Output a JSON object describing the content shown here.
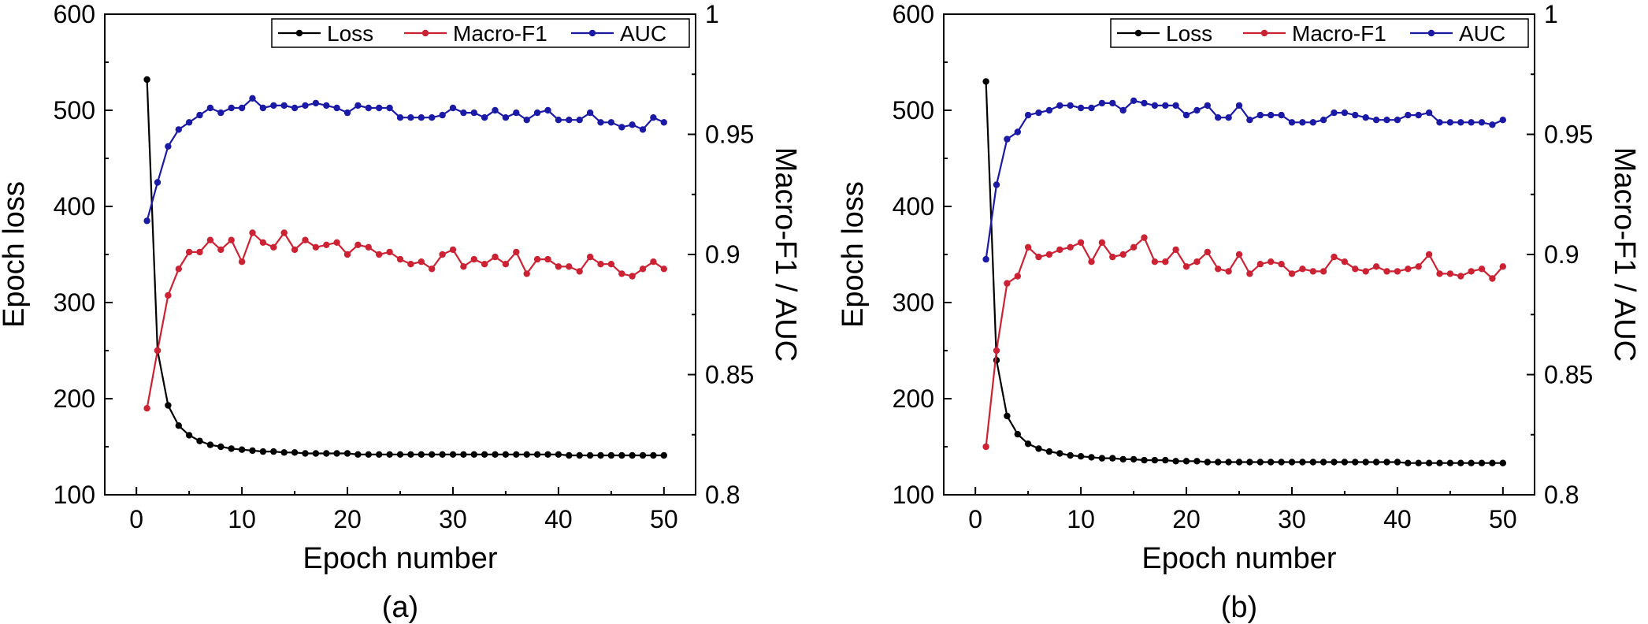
{
  "colors": {
    "loss": "#000000",
    "macro_f1": "#cc2233",
    "auc": "#1a1aa6"
  },
  "chart_data": [
    {
      "type": "line",
      "panel_label": "(a)",
      "xlabel": "Epoch number",
      "ylabel_left": "Epoch loss",
      "ylabel_right": "Macro-F1 / AUC",
      "xlim": [
        -3,
        53
      ],
      "ylim_left": [
        100,
        600
      ],
      "ylim_right": [
        0.8,
        1.0
      ],
      "x_ticks": [
        0,
        10,
        20,
        30,
        40,
        50
      ],
      "y_ticks_left": [
        100,
        200,
        300,
        400,
        500,
        600
      ],
      "y_ticks_right": [
        0.8,
        0.85,
        0.9,
        0.95,
        1.0
      ],
      "y_tick_labels_right": [
        "0.8",
        "0.85",
        "0.9",
        "0.95",
        "1"
      ],
      "legend": {
        "position": "top-right",
        "entries": [
          "Loss",
          "Macro-F1",
          "AUC"
        ]
      },
      "series": [
        {
          "name": "Loss",
          "axis": "left",
          "color_key": "loss",
          "values": [
            532,
            250,
            193,
            172,
            162,
            156,
            152,
            150,
            148,
            147,
            146,
            145,
            145,
            144,
            144,
            143,
            143,
            143,
            143,
            143,
            142,
            142,
            142,
            142,
            142,
            142,
            142,
            142,
            142,
            142,
            142,
            142,
            142,
            142,
            142,
            142,
            142,
            142,
            142,
            142,
            141,
            141,
            141,
            141,
            141,
            141,
            141,
            141,
            141,
            141
          ]
        },
        {
          "name": "Macro-F1",
          "axis": "right",
          "color_key": "macro_f1",
          "values": [
            0.836,
            0.86,
            0.883,
            0.894,
            0.901,
            0.901,
            0.906,
            0.902,
            0.906,
            0.897,
            0.909,
            0.905,
            0.903,
            0.909,
            0.902,
            0.906,
            0.903,
            0.904,
            0.905,
            0.9,
            0.904,
            0.903,
            0.9,
            0.901,
            0.898,
            0.896,
            0.897,
            0.894,
            0.9,
            0.902,
            0.895,
            0.898,
            0.896,
            0.899,
            0.896,
            0.901,
            0.892,
            0.898,
            0.898,
            0.895,
            0.895,
            0.893,
            0.899,
            0.896,
            0.896,
            0.892,
            0.891,
            0.894,
            0.897,
            0.894
          ]
        },
        {
          "name": "AUC",
          "axis": "right",
          "color_key": "auc",
          "values": [
            0.914,
            0.93,
            0.945,
            0.952,
            0.955,
            0.958,
            0.961,
            0.959,
            0.961,
            0.961,
            0.965,
            0.961,
            0.962,
            0.962,
            0.961,
            0.962,
            0.963,
            0.962,
            0.961,
            0.959,
            0.962,
            0.961,
            0.961,
            0.961,
            0.957,
            0.957,
            0.957,
            0.957,
            0.958,
            0.961,
            0.959,
            0.959,
            0.957,
            0.96,
            0.957,
            0.959,
            0.956,
            0.959,
            0.96,
            0.956,
            0.956,
            0.956,
            0.959,
            0.955,
            0.955,
            0.953,
            0.954,
            0.952,
            0.957,
            0.955
          ]
        }
      ]
    },
    {
      "type": "line",
      "panel_label": "(b)",
      "xlabel": "Epoch number",
      "ylabel_left": "Epoch loss",
      "ylabel_right": "Macro-F1 / AUC",
      "xlim": [
        -3,
        53
      ],
      "ylim_left": [
        100,
        600
      ],
      "ylim_right": [
        0.8,
        1.0
      ],
      "x_ticks": [
        0,
        10,
        20,
        30,
        40,
        50
      ],
      "y_ticks_left": [
        100,
        200,
        300,
        400,
        500,
        600
      ],
      "y_ticks_right": [
        0.8,
        0.85,
        0.9,
        0.95,
        1.0
      ],
      "y_tick_labels_right": [
        "0.8",
        "0.85",
        "0.9",
        "0.95",
        "1"
      ],
      "legend": {
        "position": "top-right",
        "entries": [
          "Loss",
          "Macro-F1",
          "AUC"
        ]
      },
      "series": [
        {
          "name": "Loss",
          "axis": "left",
          "color_key": "loss",
          "values": [
            530,
            240,
            182,
            163,
            153,
            148,
            145,
            143,
            141,
            140,
            139,
            138,
            138,
            137,
            137,
            136,
            136,
            136,
            135,
            135,
            135,
            134,
            134,
            134,
            134,
            134,
            134,
            134,
            134,
            134,
            134,
            134,
            134,
            134,
            134,
            134,
            134,
            134,
            134,
            134,
            133,
            133,
            133,
            133,
            133,
            133,
            133,
            133,
            133,
            133
          ]
        },
        {
          "name": "Macro-F1",
          "axis": "right",
          "color_key": "macro_f1",
          "values": [
            0.82,
            0.86,
            0.888,
            0.891,
            0.903,
            0.899,
            0.9,
            0.902,
            0.903,
            0.905,
            0.897,
            0.905,
            0.899,
            0.9,
            0.903,
            0.907,
            0.897,
            0.897,
            0.902,
            0.895,
            0.897,
            0.901,
            0.894,
            0.893,
            0.9,
            0.892,
            0.896,
            0.897,
            0.896,
            0.892,
            0.894,
            0.893,
            0.893,
            0.899,
            0.897,
            0.894,
            0.893,
            0.895,
            0.893,
            0.893,
            0.894,
            0.895,
            0.9,
            0.892,
            0.892,
            0.891,
            0.893,
            0.894,
            0.89,
            0.895
          ]
        },
        {
          "name": "AUC",
          "axis": "right",
          "color_key": "auc",
          "values": [
            0.898,
            0.929,
            0.948,
            0.951,
            0.958,
            0.959,
            0.96,
            0.962,
            0.962,
            0.961,
            0.961,
            0.963,
            0.963,
            0.96,
            0.964,
            0.963,
            0.962,
            0.962,
            0.962,
            0.958,
            0.96,
            0.962,
            0.957,
            0.957,
            0.962,
            0.956,
            0.958,
            0.958,
            0.958,
            0.955,
            0.955,
            0.955,
            0.956,
            0.959,
            0.959,
            0.958,
            0.957,
            0.956,
            0.956,
            0.956,
            0.958,
            0.958,
            0.959,
            0.955,
            0.955,
            0.955,
            0.955,
            0.955,
            0.954,
            0.956
          ]
        }
      ]
    }
  ]
}
